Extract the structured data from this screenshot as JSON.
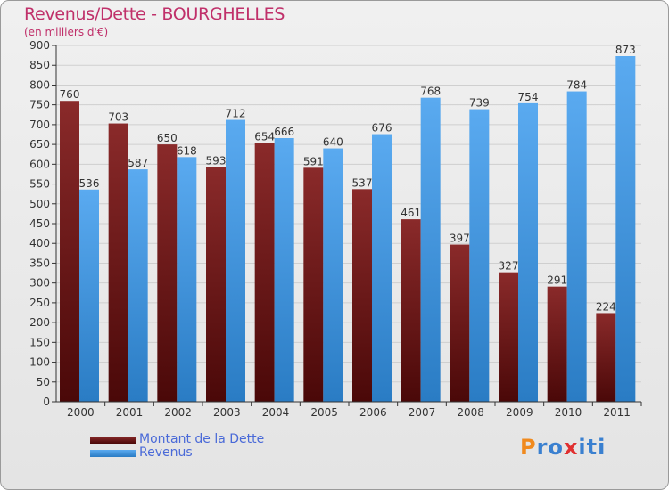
{
  "title": "Revenus/Dette - BOURGHELLES",
  "subtitle": "(en milliers d'€)",
  "logo": {
    "text": "Proxiti",
    "letters": [
      {
        "ch": "P",
        "color": "#f08a1e"
      },
      {
        "ch": "r",
        "color": "#3a80d0"
      },
      {
        "ch": "o",
        "color": "#3a80d0"
      },
      {
        "ch": "x",
        "color": "#e03030"
      },
      {
        "ch": "i",
        "color": "#3a80d0"
      },
      {
        "ch": "t",
        "color": "#3a80d0"
      },
      {
        "ch": "i",
        "color": "#3a80d0"
      }
    ]
  },
  "chart_data": {
    "type": "bar",
    "categories": [
      "2000",
      "2001",
      "2002",
      "2003",
      "2004",
      "2005",
      "2006",
      "2007",
      "2008",
      "2009",
      "2010",
      "2011"
    ],
    "series": [
      {
        "name": "Montant de la Dette",
        "color": "#6e1818",
        "values": [
          760,
          703,
          650,
          593,
          654,
          591,
          537,
          461,
          397,
          327,
          291,
          224
        ]
      },
      {
        "name": "Revenus",
        "color": "#4a9fe4",
        "values": [
          536,
          587,
          618,
          712,
          666,
          640,
          676,
          768,
          739,
          754,
          784,
          873
        ]
      }
    ],
    "ylim": [
      0,
      900
    ],
    "ytick_step": 50,
    "grid": true,
    "legend": "bottom-left"
  }
}
